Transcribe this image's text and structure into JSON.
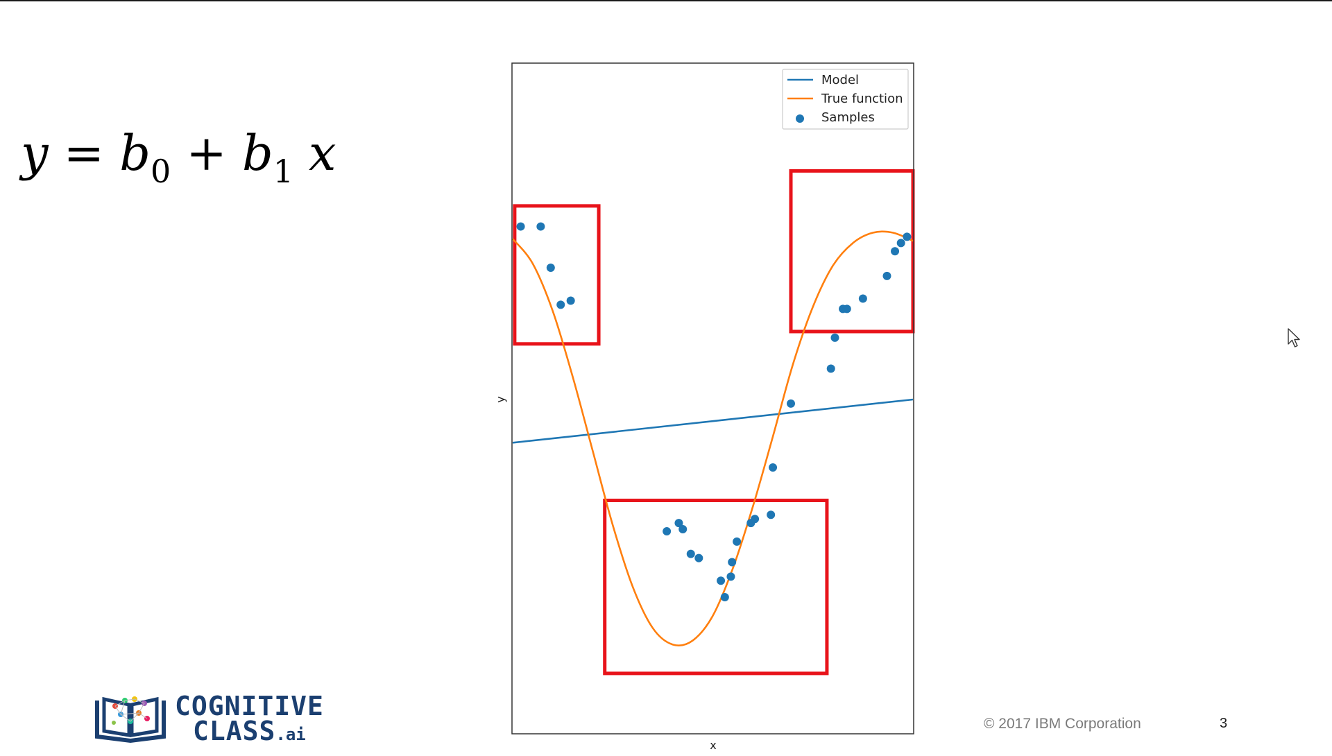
{
  "slide": {
    "equation": {
      "y": "y",
      "eq": "=",
      "b": "b",
      "sub0": "0",
      "plus": "+",
      "sub1": "1",
      "x": "x"
    },
    "footer": {
      "copyright": "© 2017 IBM Corporation",
      "page_number": "3"
    },
    "logo": {
      "line1": "COGNITIVE",
      "line2": "CLASS",
      "suffix": ".ai"
    }
  },
  "chart_data": {
    "type": "line",
    "xlabel": "x",
    "ylabel": "y",
    "xlim": [
      0,
      1
    ],
    "ylim": [
      -1.55,
      1.7
    ],
    "ticks": "hidden",
    "legend": {
      "placement": "top-right",
      "entries": [
        "Model",
        "True function",
        "Samples"
      ]
    },
    "colors": {
      "model": "#1f77b4",
      "true_function": "#ff7f0e",
      "samples": "#1f77b4",
      "highlight": "#e8131a"
    },
    "series": [
      {
        "name": "Model",
        "kind": "line",
        "x": [
          0,
          1
        ],
        "y": [
          -0.14,
          0.07
        ]
      },
      {
        "name": "True function",
        "kind": "line",
        "x": [
          0,
          0.05,
          0.1,
          0.15,
          0.2,
          0.25,
          0.3,
          0.35,
          0.4,
          0.45,
          0.5,
          0.55,
          0.6,
          0.65,
          0.7,
          0.75,
          0.8,
          0.85,
          0.9,
          0.95,
          1
        ],
        "y": [
          0.85,
          0.73,
          0.5,
          0.18,
          -0.18,
          -0.54,
          -0.84,
          -1.04,
          -1.12,
          -1.1,
          -0.98,
          -0.75,
          -0.45,
          -0.11,
          0.24,
          0.52,
          0.72,
          0.83,
          0.88,
          0.88,
          0.84
        ]
      },
      {
        "name": "Samples",
        "kind": "scatter",
        "x": [
          0.02,
          0.07,
          0.095,
          0.12,
          0.145,
          0.385,
          0.415,
          0.425,
          0.445,
          0.465,
          0.52,
          0.53,
          0.545,
          0.548,
          0.56,
          0.595,
          0.605,
          0.645,
          0.65,
          0.695,
          0.795,
          0.805,
          0.825,
          0.835,
          0.875,
          0.935,
          0.955,
          0.97,
          0.985
        ],
        "y": [
          0.91,
          0.91,
          0.71,
          0.53,
          0.55,
          -0.57,
          -0.53,
          -0.56,
          -0.68,
          -0.7,
          -0.81,
          -0.89,
          -0.79,
          -0.72,
          -0.62,
          -0.53,
          -0.51,
          -0.49,
          -0.26,
          0.05,
          0.22,
          0.37,
          0.51,
          0.51,
          0.56,
          0.67,
          0.79,
          0.83,
          0.86
        ]
      }
    ],
    "highlight_boxes": [
      {
        "x": [
          0.005,
          0.215
        ],
        "y": [
          0.34,
          1.01
        ]
      },
      {
        "x": [
          0.23,
          0.785
        ],
        "y": [
          -1.26,
          -0.42
        ]
      },
      {
        "x": [
          0.695,
          1.0
        ],
        "y": [
          0.4,
          1.18
        ]
      }
    ]
  }
}
